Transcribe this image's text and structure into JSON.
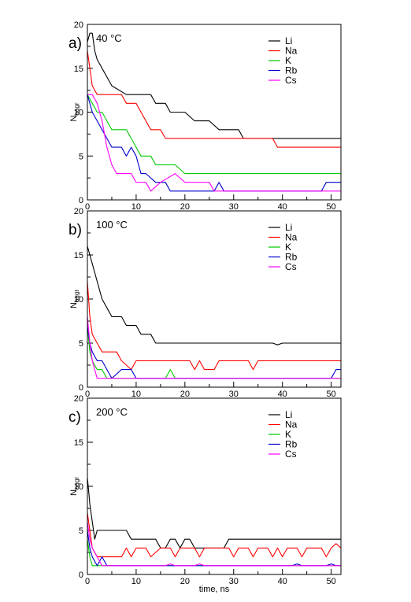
{
  "figure": {
    "xlabel": "time, ns",
    "ylabel_main": "N",
    "ylabel_sub": "aggr"
  },
  "colors": {
    "Li": "#000000",
    "Na": "#ff0000",
    "K": "#00cc00",
    "Rb": "#0000cc",
    "Cs": "#ff00ff"
  },
  "chart_data": [
    {
      "type": "line",
      "panel_label": "a)",
      "temperature_label": "40  °C",
      "xlim": [
        0,
        52
      ],
      "ylim": [
        0,
        20
      ],
      "xticks": [
        0,
        10,
        20,
        30,
        40,
        50
      ],
      "yticks": [
        0,
        5,
        10,
        15,
        20
      ],
      "legend": "top-right",
      "series": [
        {
          "name": "Li",
          "points": [
            [
              0,
              18
            ],
            [
              0.5,
              19
            ],
            [
              1,
              19
            ],
            [
              1.5,
              17
            ],
            [
              2,
              16
            ],
            [
              3,
              15
            ],
            [
              4,
              14
            ],
            [
              5,
              13
            ],
            [
              8,
              12
            ],
            [
              12,
              12
            ],
            [
              13,
              12
            ],
            [
              14,
              11
            ],
            [
              16,
              11
            ],
            [
              17,
              10
            ],
            [
              20,
              10
            ],
            [
              22,
              9
            ],
            [
              25,
              9
            ],
            [
              27,
              8
            ],
            [
              31,
              8
            ],
            [
              32,
              7
            ],
            [
              52,
              7
            ]
          ]
        },
        {
          "name": "Na",
          "points": [
            [
              0,
              17
            ],
            [
              0.5,
              15
            ],
            [
              1,
              13
            ],
            [
              2,
              12
            ],
            [
              7,
              12
            ],
            [
              8,
              11
            ],
            [
              10,
              11
            ],
            [
              11,
              10
            ],
            [
              12,
              9
            ],
            [
              13,
              8
            ],
            [
              15,
              8
            ],
            [
              16,
              7
            ],
            [
              38,
              7
            ],
            [
              39,
              6
            ],
            [
              52,
              6
            ]
          ]
        },
        {
          "name": "K",
          "points": [
            [
              0,
              12
            ],
            [
              1,
              11
            ],
            [
              2,
              10
            ],
            [
              3,
              10
            ],
            [
              4,
              9
            ],
            [
              5,
              8
            ],
            [
              8,
              8
            ],
            [
              9,
              7
            ],
            [
              10,
              6
            ],
            [
              11,
              5
            ],
            [
              13,
              5
            ],
            [
              14,
              4
            ],
            [
              18,
              4
            ],
            [
              20,
              3
            ],
            [
              52,
              3
            ]
          ]
        },
        {
          "name": "Rb",
          "points": [
            [
              0,
              12
            ],
            [
              1,
              10
            ],
            [
              2,
              9
            ],
            [
              3,
              8
            ],
            [
              4,
              7
            ],
            [
              5,
              6
            ],
            [
              7,
              6
            ],
            [
              8,
              5
            ],
            [
              9,
              6
            ],
            [
              10,
              5
            ],
            [
              11,
              3
            ],
            [
              12,
              3
            ],
            [
              14,
              2
            ],
            [
              16,
              2
            ],
            [
              17,
              1
            ],
            [
              26,
              1
            ],
            [
              27,
              2
            ],
            [
              28,
              1
            ],
            [
              48,
              1
            ],
            [
              49,
              2
            ],
            [
              52,
              2
            ]
          ]
        },
        {
          "name": "Cs",
          "points": [
            [
              0,
              12
            ],
            [
              1,
              12
            ],
            [
              2,
              11
            ],
            [
              3,
              9
            ],
            [
              4,
              6
            ],
            [
              5,
              4
            ],
            [
              6,
              3
            ],
            [
              9,
              3
            ],
            [
              10,
              2
            ],
            [
              12,
              2
            ],
            [
              13,
              1
            ],
            [
              15,
              2
            ],
            [
              18,
              3
            ],
            [
              20,
              2
            ],
            [
              25,
              2
            ],
            [
              26,
              1
            ],
            [
              52,
              1
            ]
          ]
        }
      ]
    },
    {
      "type": "line",
      "panel_label": "b)",
      "temperature_label": "100 °C",
      "xlim": [
        0,
        52
      ],
      "ylim": [
        0,
        20
      ],
      "xticks": [
        0,
        10,
        20,
        30,
        40,
        50
      ],
      "yticks": [
        0,
        5,
        10,
        15,
        20
      ],
      "legend": "top-right",
      "series": [
        {
          "name": "Li",
          "points": [
            [
              0,
              16
            ],
            [
              0.5,
              15
            ],
            [
              1,
              14
            ],
            [
              2,
              12
            ],
            [
              3,
              10
            ],
            [
              4,
              9
            ],
            [
              5,
              8
            ],
            [
              7,
              8
            ],
            [
              8,
              7
            ],
            [
              10,
              7
            ],
            [
              11,
              6
            ],
            [
              13,
              6
            ],
            [
              14,
              5
            ],
            [
              38,
              5
            ],
            [
              39,
              4.8
            ],
            [
              40,
              5
            ],
            [
              52,
              5
            ]
          ]
        },
        {
          "name": "Na",
          "points": [
            [
              0,
              12
            ],
            [
              0.5,
              8
            ],
            [
              1,
              6
            ],
            [
              2,
              5
            ],
            [
              3,
              4
            ],
            [
              6,
              4
            ],
            [
              7,
              3
            ],
            [
              9,
              2
            ],
            [
              10,
              3
            ],
            [
              21,
              3
            ],
            [
              22,
              2
            ],
            [
              23,
              3
            ],
            [
              24,
              2
            ],
            [
              26,
              2
            ],
            [
              27,
              3
            ],
            [
              33,
              3
            ],
            [
              34,
              2
            ],
            [
              35,
              3
            ],
            [
              52,
              3
            ]
          ]
        },
        {
          "name": "K",
          "points": [
            [
              0,
              7
            ],
            [
              0.5,
              4
            ],
            [
              1,
              3
            ],
            [
              2,
              2
            ],
            [
              3,
              2
            ],
            [
              4,
              1
            ],
            [
              16,
              1
            ],
            [
              17,
              2
            ],
            [
              18,
              1
            ],
            [
              52,
              1
            ]
          ]
        },
        {
          "name": "Rb",
          "points": [
            [
              0,
              7
            ],
            [
              0.5,
              5
            ],
            [
              1,
              4
            ],
            [
              2,
              3
            ],
            [
              3,
              3
            ],
            [
              4,
              2
            ],
            [
              5,
              1
            ],
            [
              7,
              2
            ],
            [
              9,
              2
            ],
            [
              10,
              1
            ],
            [
              50,
              1
            ],
            [
              51,
              2
            ],
            [
              52,
              2
            ]
          ]
        },
        {
          "name": "Cs",
          "points": [
            [
              0,
              8
            ],
            [
              0.5,
              5
            ],
            [
              1,
              3
            ],
            [
              2,
              1
            ],
            [
              52,
              1
            ]
          ]
        }
      ]
    },
    {
      "type": "line",
      "panel_label": "c)",
      "temperature_label": "200 °C",
      "xlim": [
        0,
        52
      ],
      "ylim": [
        0,
        20
      ],
      "xticks": [
        0,
        10,
        20,
        30,
        40,
        50
      ],
      "yticks": [
        0,
        5,
        10,
        15,
        20
      ],
      "legend": "top-right",
      "series": [
        {
          "name": "Li",
          "points": [
            [
              0,
              11
            ],
            [
              0.5,
              8
            ],
            [
              1,
              6
            ],
            [
              1.5,
              4
            ],
            [
              2,
              5
            ],
            [
              8,
              5
            ],
            [
              9,
              4
            ],
            [
              14,
              4
            ],
            [
              15,
              3
            ],
            [
              16,
              3
            ],
            [
              17,
              4
            ],
            [
              18,
              4
            ],
            [
              19,
              3
            ],
            [
              20,
              4
            ],
            [
              21,
              4
            ],
            [
              22,
              3
            ],
            [
              28,
              3
            ],
            [
              29,
              4
            ],
            [
              52,
              4
            ]
          ]
        },
        {
          "name": "Na",
          "points": [
            [
              0,
              7
            ],
            [
              0.5,
              5
            ],
            [
              1,
              3
            ],
            [
              2,
              2
            ],
            [
              7,
              2
            ],
            [
              8,
              3
            ],
            [
              9,
              2
            ],
            [
              10,
              3
            ],
            [
              12,
              3
            ],
            [
              13,
              2
            ],
            [
              15,
              3
            ],
            [
              17,
              3
            ],
            [
              18,
              2
            ],
            [
              19,
              3
            ],
            [
              22,
              3
            ],
            [
              23,
              2
            ],
            [
              24,
              3
            ],
            [
              29,
              3
            ],
            [
              30,
              2
            ],
            [
              31,
              3
            ],
            [
              33,
              3
            ],
            [
              34,
              2
            ],
            [
              35,
              3
            ],
            [
              37,
              3
            ],
            [
              38,
              2
            ],
            [
              39,
              3
            ],
            [
              40,
              2
            ],
            [
              41,
              3
            ],
            [
              43,
              3
            ],
            [
              44,
              2
            ],
            [
              45,
              3
            ],
            [
              48,
              3
            ],
            [
              49,
              2
            ],
            [
              50,
              3
            ],
            [
              51,
              3.5
            ],
            [
              52,
              3
            ]
          ]
        },
        {
          "name": "K",
          "points": [
            [
              0,
              4
            ],
            [
              0.5,
              2
            ],
            [
              1,
              1
            ],
            [
              52,
              1
            ]
          ]
        },
        {
          "name": "Rb",
          "points": [
            [
              0,
              5
            ],
            [
              0.5,
              3
            ],
            [
              1,
              2
            ],
            [
              2,
              1
            ],
            [
              3,
              2
            ],
            [
              4,
              1
            ],
            [
              42,
              1
            ],
            [
              43,
              1.2
            ],
            [
              44,
              1
            ],
            [
              49,
              1
            ],
            [
              50,
              1.2
            ],
            [
              51,
              1
            ],
            [
              52,
              1
            ]
          ]
        },
        {
          "name": "Cs",
          "points": [
            [
              0,
              6
            ],
            [
              0.5,
              4
            ],
            [
              1,
              3
            ],
            [
              2,
              2
            ],
            [
              3,
              1
            ],
            [
              16,
              1
            ],
            [
              17,
              1.2
            ],
            [
              18,
              1
            ],
            [
              22,
              1
            ],
            [
              23,
              1.2
            ],
            [
              24,
              1
            ],
            [
              52,
              1
            ]
          ]
        }
      ]
    }
  ]
}
